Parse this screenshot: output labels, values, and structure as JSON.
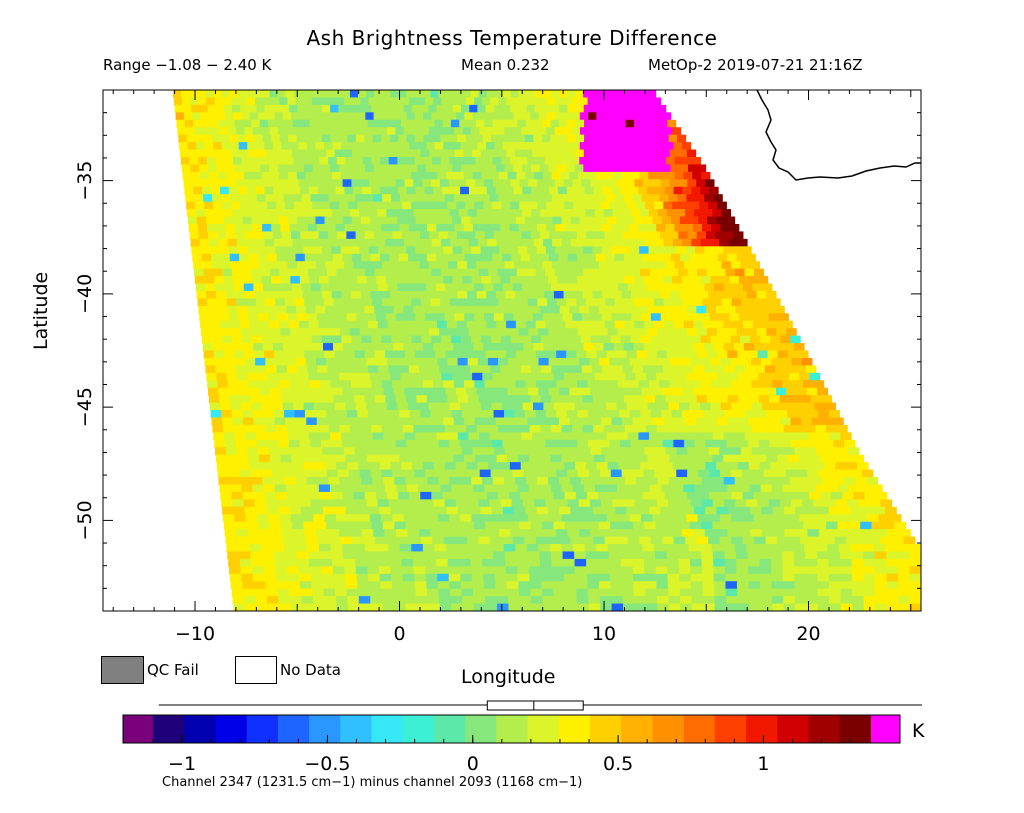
{
  "header": {
    "title": "Ash Brightness Temperature Difference",
    "range": "Range −1.08 − 2.40 K",
    "mean": "Mean 0.232",
    "satellite_time": "MetOp-2 2019-07-21 21:16Z"
  },
  "legend": {
    "qc_fail_label": "QC Fail",
    "no_data_label": "No Data",
    "qc_fail_color": "#808080",
    "no_data_color": "#ffffff"
  },
  "colorbar": {
    "unit": "K",
    "caption": "Channel 2347 (1231.5 cm−1) minus channel 2093 (1168 cm−1)",
    "min": -1.2,
    "max": 1.45,
    "colors": [
      "#7b007b",
      "#20007a",
      "#0000b0",
      "#0000e6",
      "#1030ff",
      "#1e64ff",
      "#2a96ff",
      "#30c0ff",
      "#36e8f6",
      "#3cf0d6",
      "#5ce8a8",
      "#86e87c",
      "#b4ee4c",
      "#dcf42a",
      "#fff000",
      "#ffd000",
      "#ffb000",
      "#ff9000",
      "#ff6c00",
      "#ff4000",
      "#f21800",
      "#d00000",
      "#a00000",
      "#7a0000",
      "#ff00ff"
    ],
    "ticks": [
      -1,
      -0.5,
      0,
      0.5,
      1
    ],
    "tick_labels": [
      "−1",
      "−0.5",
      "0",
      "0.5",
      "1"
    ],
    "boxplot": {
      "whisker_low": -1.08,
      "q1": 0.05,
      "median": 0.21,
      "q3": 0.38,
      "whisker_high": 2.4
    }
  },
  "chart_data": {
    "type": "heatmap",
    "title": "Ash Brightness Temperature Difference",
    "xlabel": "Longitude",
    "ylabel": "Latitude",
    "xlim": [
      -14.5,
      25.5
    ],
    "ylim": [
      -54,
      -31
    ],
    "x_ticks": [
      -10,
      0,
      10,
      20
    ],
    "x_tick_labels": [
      "−10",
      "0",
      "10",
      "20"
    ],
    "y_ticks": [
      -35,
      -40,
      -45,
      -50
    ],
    "y_tick_labels": [
      "−35",
      "−40",
      "−45",
      "−50"
    ],
    "value_range": [
      -1.08,
      2.4
    ],
    "mean": 0.232,
    "units": "K",
    "swath": {
      "left_edge": [
        [
          -11.1,
          -31
        ],
        [
          -8.1,
          -54
        ]
      ],
      "right_edge": [
        [
          12.4,
          -31
        ],
        [
          15.0,
          -34.5
        ],
        [
          19.0,
          -41
        ],
        [
          22.5,
          -47
        ],
        [
          25.5,
          -51.3
        ]
      ]
    },
    "features": [
      {
        "region": "swath east edge near 10–18°E, 31–37°S",
        "value_k": 1.1
      },
      {
        "region": "saturated patch near 9–13°E, 31–34.5°S",
        "value_k": 1.45
      },
      {
        "region": "swath center",
        "value_k": 0.05
      },
      {
        "region": "western swath edge",
        "value_k": 0.55
      }
    ]
  }
}
